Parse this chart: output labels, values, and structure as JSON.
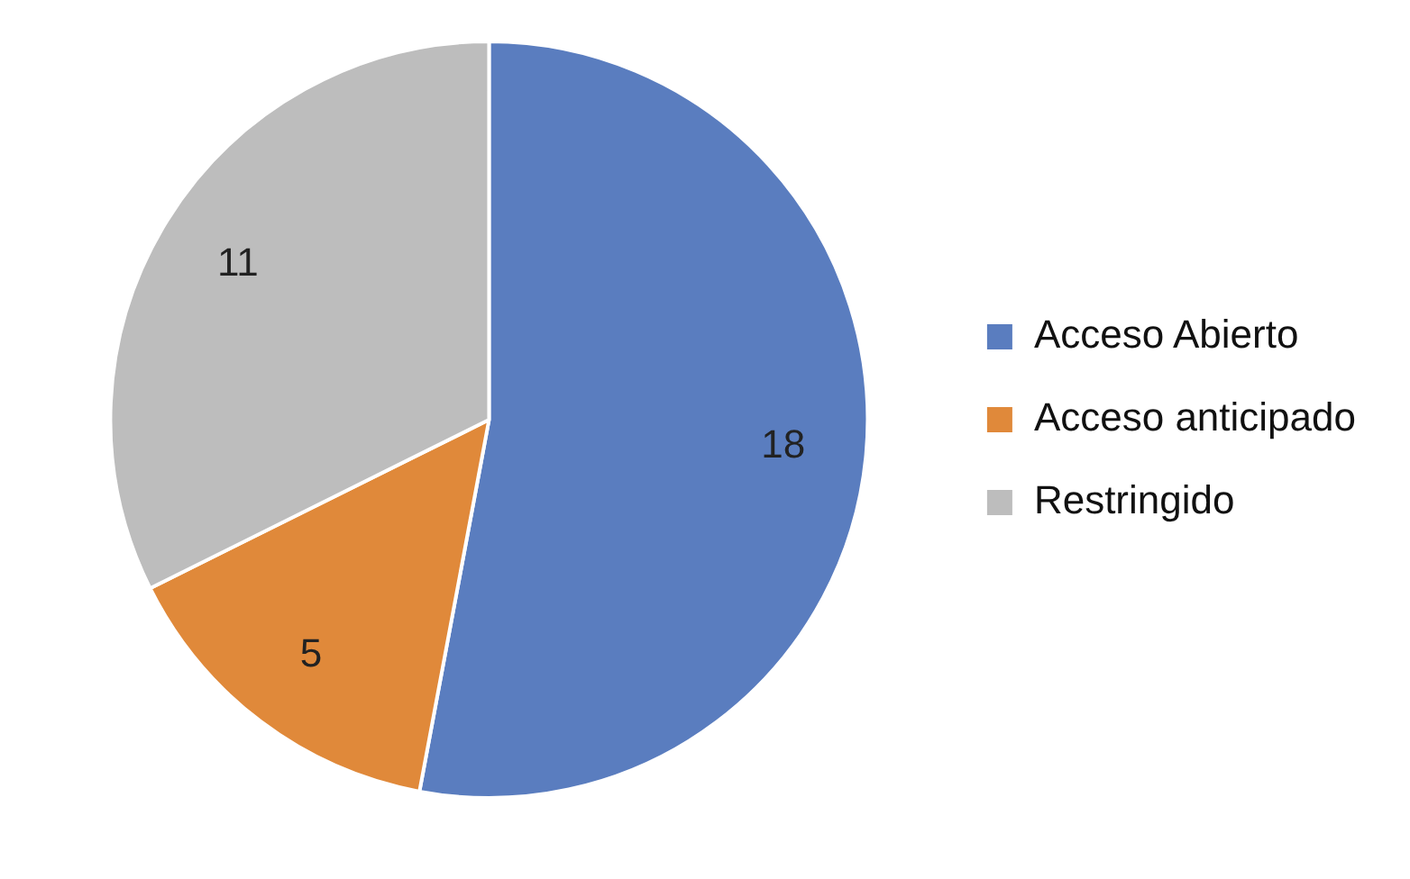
{
  "chart_data": {
    "type": "pie",
    "categories": [
      "Acceso Abierto",
      "Acceso anticipado",
      "Restringido"
    ],
    "values": [
      18,
      5,
      11
    ],
    "colors": [
      "#5a7dbf",
      "#e0893a",
      "#bdbdbd"
    ],
    "data_labels": true,
    "legend": "right"
  }
}
